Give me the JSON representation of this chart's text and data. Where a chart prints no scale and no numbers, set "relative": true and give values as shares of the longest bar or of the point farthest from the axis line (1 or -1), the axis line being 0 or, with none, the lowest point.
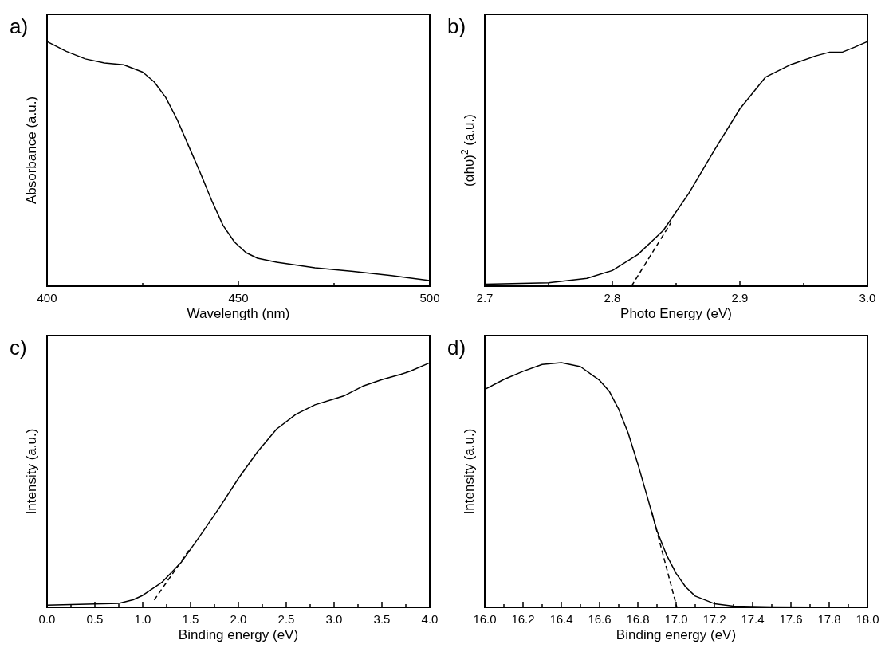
{
  "chart_data": [
    {
      "type": "line",
      "title": "a)",
      "xlabel": "Wavelength (nm)",
      "ylabel": "Absorbance (a.u.)",
      "relative": true,
      "xlim": [
        400,
        500
      ],
      "xticks": [
        400,
        {
          "value": 425,
          "label": null
        },
        450,
        {
          "value": 475,
          "label": null
        },
        500
      ],
      "series": [
        {
          "color": "#000000",
          "line_style": "solid",
          "x": [
            400,
            405,
            410,
            415,
            420,
            425,
            428,
            431,
            434,
            437,
            440,
            443,
            446,
            449,
            452,
            455,
            460,
            470,
            480,
            490,
            500
          ],
          "values": [
            1,
            0.96,
            0.929,
            0.912,
            0.905,
            0.875,
            0.835,
            0.772,
            0.681,
            0.573,
            0.465,
            0.351,
            0.248,
            0.18,
            0.137,
            0.114,
            0.098,
            0.075,
            0.06,
            0.043,
            0.023
          ]
        }
      ]
    },
    {
      "type": "line",
      "title": "b)",
      "xlabel": "Photo Energy (eV)",
      "ylabel": "(αhυ)$^{2}$ (a.u.)",
      "relative": true,
      "xlim": [
        2.7,
        3.0
      ],
      "xticks": [
        2.7,
        {
          "value": 2.75,
          "label": null
        },
        2.8,
        {
          "value": 2.85,
          "label": null
        },
        2.9,
        {
          "value": 2.95,
          "label": null
        },
        {
          "value": 3.0,
          "label": "3.0"
        }
      ],
      "series": [
        {
          "color": "#000000",
          "line_style": "solid",
          "x": [
            2.7,
            2.75,
            2.78,
            2.8,
            2.82,
            2.84,
            2.86,
            2.88,
            2.9,
            2.92,
            2.94,
            2.96,
            2.97,
            2.98,
            2.99,
            3.0
          ],
          "values": [
            0.008,
            0.014,
            0.032,
            0.064,
            0.129,
            0.228,
            0.38,
            0.556,
            0.725,
            0.854,
            0.906,
            0.942,
            0.956,
            0.956,
            0.977,
            1
          ]
        },
        {
          "color": "#000000",
          "line_style": "dashed",
          "x": [
            2.815,
            2.846
          ],
          "values": [
            0,
            0.26
          ]
        }
      ]
    },
    {
      "type": "line",
      "title": "c)",
      "xlabel": "Binding energy (eV)",
      "ylabel": "Intensity (a.u.)",
      "relative": true,
      "xlim": [
        0,
        4
      ],
      "xticks": [
        {
          "value": 0,
          "label": "0.0"
        },
        {
          "value": 0.25,
          "label": null
        },
        0.5,
        {
          "value": 0.75,
          "label": null
        },
        {
          "value": 1,
          "label": "1.0"
        },
        {
          "value": 1.25,
          "label": null
        },
        1.5,
        {
          "value": 1.75,
          "label": null
        },
        {
          "value": 2,
          "label": "2.0"
        },
        {
          "value": 2.25,
          "label": null
        },
        2.5,
        {
          "value": 2.75,
          "label": null
        },
        {
          "value": 3,
          "label": "3.0"
        },
        {
          "value": 3.25,
          "label": null
        },
        3.5,
        {
          "value": 3.75,
          "label": null
        },
        {
          "value": 4,
          "label": "4.0"
        }
      ],
      "series": [
        {
          "color": "#000000",
          "line_style": "solid",
          "x": [
            0,
            0.5,
            0.75,
            0.9,
            1.0,
            1.2,
            1.4,
            1.6,
            1.8,
            2.0,
            2.2,
            2.4,
            2.6,
            2.8,
            3.0,
            3.1,
            3.3,
            3.5,
            3.7,
            3.8,
            4.0
          ],
          "values": [
            0.009,
            0.014,
            0.016,
            0.031,
            0.049,
            0.102,
            0.183,
            0.293,
            0.407,
            0.527,
            0.636,
            0.729,
            0.789,
            0.828,
            0.852,
            0.864,
            0.904,
            0.931,
            0.953,
            0.966,
            1
          ]
        },
        {
          "color": "#000000",
          "line_style": "dashed",
          "x": [
            1.12,
            1.5
          ],
          "values": [
            0.03,
            0.243
          ]
        }
      ]
    },
    {
      "type": "line",
      "title": "d)",
      "xlabel": "Binding energy (eV)",
      "ylabel": "Intensity (a.u.)",
      "relative": true,
      "xlim": [
        16,
        18
      ],
      "xticks": [
        {
          "value": 16,
          "label": "16.0"
        },
        {
          "value": 16.1,
          "label": null
        },
        16.2,
        {
          "value": 16.3,
          "label": null
        },
        16.4,
        {
          "value": 16.5,
          "label": null
        },
        16.6,
        {
          "value": 16.7,
          "label": null
        },
        16.8,
        {
          "value": 16.9,
          "label": null
        },
        {
          "value": 17,
          "label": "17.0"
        },
        {
          "value": 17.1,
          "label": null
        },
        17.2,
        {
          "value": 17.3,
          "label": null
        },
        17.4,
        {
          "value": 17.5,
          "label": null
        },
        17.6,
        {
          "value": 17.7,
          "label": null
        },
        17.8,
        {
          "value": 17.9,
          "label": null
        },
        {
          "value": 18,
          "label": "18.0"
        }
      ],
      "series": [
        {
          "color": "#000000",
          "line_style": "solid",
          "x": [
            16.0,
            16.1,
            16.2,
            16.3,
            16.4,
            16.5,
            16.6,
            16.65,
            16.7,
            16.75,
            16.8,
            16.85,
            16.9,
            16.95,
            17.0,
            17.05,
            17.1,
            17.2,
            17.3,
            17.5,
            18.0
          ],
          "values": [
            0.891,
            0.932,
            0.965,
            0.993,
            1,
            0.984,
            0.928,
            0.884,
            0.81,
            0.711,
            0.586,
            0.45,
            0.313,
            0.214,
            0.139,
            0.083,
            0.046,
            0.015,
            0.005,
            0.002,
            0
          ]
        },
        {
          "color": "#000000",
          "line_style": "dashed",
          "x": [
            16.873,
            17.004
          ],
          "values": [
            0.39,
            0
          ]
        }
      ]
    }
  ]
}
